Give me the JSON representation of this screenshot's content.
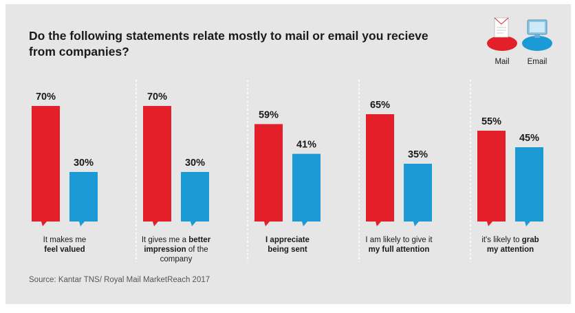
{
  "title_line1": "Do the following statements relate mostly to mail or email you recieve",
  "title_line2": "from companies?",
  "source": "Source: Kantar TNS/ Royal Mail MarketReach 2017",
  "colors": {
    "mail": "#e3202a",
    "email": "#1c9ad6"
  },
  "chart_data": {
    "type": "bar",
    "title": "Do the following statements relate mostly to mail or email you recieve from companies?",
    "ylim": [
      0,
      100
    ],
    "grid": false,
    "legend_position": "top-right",
    "series": [
      {
        "name": "Mail",
        "values": [
          70,
          70,
          59,
          65,
          55
        ],
        "value_labels": [
          "70%",
          "70%",
          "59%",
          "65%",
          "55%"
        ],
        "icon": "letter-icon"
      },
      {
        "name": "Email",
        "values": [
          30,
          30,
          41,
          35,
          45
        ],
        "value_labels": [
          "30%",
          "30%",
          "41%",
          "35%",
          "45%"
        ],
        "icon": "monitor-icon"
      }
    ],
    "categories": [
      {
        "lines": [
          [
            {
              "t": "It makes me",
              "b": false
            }
          ],
          [
            {
              "t": "feel valued",
              "b": true
            }
          ]
        ]
      },
      {
        "lines": [
          [
            {
              "t": "It gives me a ",
              "b": false
            },
            {
              "t": "better",
              "b": true
            }
          ],
          [
            {
              "t": "impression",
              "b": true
            },
            {
              "t": " of the",
              "b": false
            }
          ],
          [
            {
              "t": "company",
              "b": false
            }
          ]
        ]
      },
      {
        "lines": [
          [
            {
              "t": "I appreciate",
              "b": true
            }
          ],
          [
            {
              "t": "being sent",
              "b": true
            }
          ]
        ]
      },
      {
        "lines": [
          [
            {
              "t": "I am likely to give it",
              "b": false
            }
          ],
          [
            {
              "t": "my full attention",
              "b": true
            }
          ]
        ]
      },
      {
        "lines": [
          [
            {
              "t": "it's likely to ",
              "b": false
            },
            {
              "t": "grab",
              "b": true
            }
          ],
          [
            {
              "t": "my attention",
              "b": true
            }
          ]
        ]
      }
    ]
  }
}
